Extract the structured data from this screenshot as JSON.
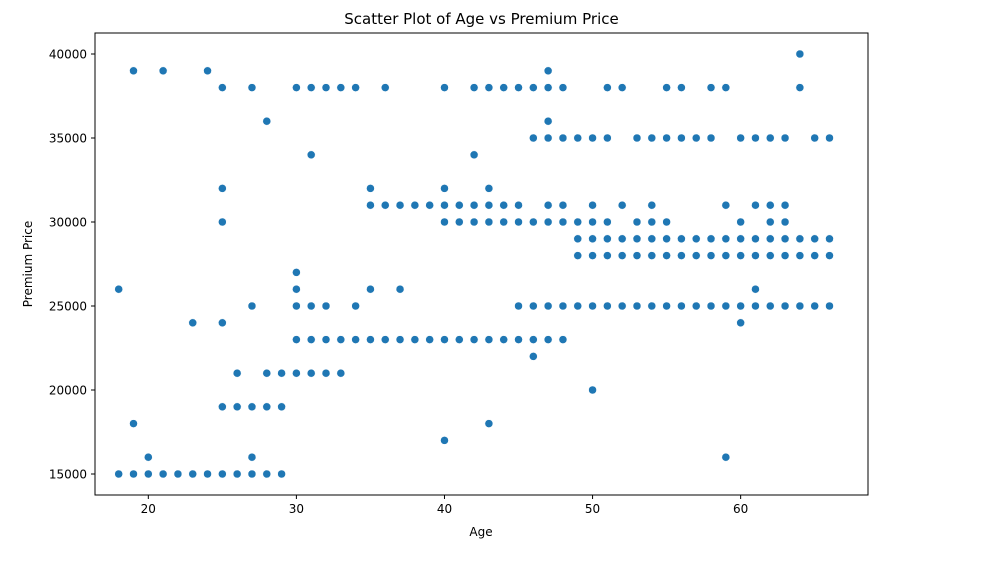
{
  "chart_data": {
    "type": "scatter",
    "title": "Scatter Plot of Age vs Premium Price",
    "xlabel": "Age",
    "ylabel": "Premium Price",
    "xlim": [
      16.4,
      68.6
    ],
    "ylim": [
      13750,
      41250
    ],
    "xticks": [
      20,
      30,
      40,
      50,
      60
    ],
    "yticks": [
      15000,
      20000,
      25000,
      30000,
      35000,
      40000
    ],
    "grid": false,
    "marker_color": "#1f77b4",
    "points": [
      [
        18,
        15000
      ],
      [
        19,
        15000
      ],
      [
        20,
        15000
      ],
      [
        21,
        15000
      ],
      [
        22,
        15000
      ],
      [
        23,
        15000
      ],
      [
        24,
        15000
      ],
      [
        25,
        15000
      ],
      [
        26,
        15000
      ],
      [
        27,
        15000
      ],
      [
        28,
        15000
      ],
      [
        29,
        15000
      ],
      [
        20,
        16000
      ],
      [
        27,
        16000
      ],
      [
        59,
        16000
      ],
      [
        40,
        17000
      ],
      [
        19,
        18000
      ],
      [
        43,
        18000
      ],
      [
        25,
        19000
      ],
      [
        26,
        19000
      ],
      [
        27,
        19000
      ],
      [
        28,
        19000
      ],
      [
        29,
        19000
      ],
      [
        50,
        20000
      ],
      [
        26,
        21000
      ],
      [
        28,
        21000
      ],
      [
        29,
        21000
      ],
      [
        30,
        21000
      ],
      [
        31,
        21000
      ],
      [
        32,
        21000
      ],
      [
        33,
        21000
      ],
      [
        46,
        22000
      ],
      [
        30,
        23000
      ],
      [
        31,
        23000
      ],
      [
        32,
        23000
      ],
      [
        33,
        23000
      ],
      [
        34,
        23000
      ],
      [
        35,
        23000
      ],
      [
        36,
        23000
      ],
      [
        37,
        23000
      ],
      [
        38,
        23000
      ],
      [
        39,
        23000
      ],
      [
        40,
        23000
      ],
      [
        41,
        23000
      ],
      [
        42,
        23000
      ],
      [
        43,
        23000
      ],
      [
        44,
        23000
      ],
      [
        45,
        23000
      ],
      [
        46,
        23000
      ],
      [
        47,
        23000
      ],
      [
        48,
        23000
      ],
      [
        23,
        24000
      ],
      [
        25,
        24000
      ],
      [
        60,
        24000
      ],
      [
        27,
        25000
      ],
      [
        30,
        25000
      ],
      [
        31,
        25000
      ],
      [
        32,
        25000
      ],
      [
        34,
        25000
      ],
      [
        45,
        25000
      ],
      [
        46,
        25000
      ],
      [
        47,
        25000
      ],
      [
        48,
        25000
      ],
      [
        49,
        25000
      ],
      [
        50,
        25000
      ],
      [
        51,
        25000
      ],
      [
        52,
        25000
      ],
      [
        53,
        25000
      ],
      [
        54,
        25000
      ],
      [
        55,
        25000
      ],
      [
        56,
        25000
      ],
      [
        57,
        25000
      ],
      [
        58,
        25000
      ],
      [
        59,
        25000
      ],
      [
        60,
        25000
      ],
      [
        61,
        25000
      ],
      [
        62,
        25000
      ],
      [
        63,
        25000
      ],
      [
        64,
        25000
      ],
      [
        65,
        25000
      ],
      [
        66,
        25000
      ],
      [
        18,
        26000
      ],
      [
        30,
        26000
      ],
      [
        35,
        26000
      ],
      [
        37,
        26000
      ],
      [
        61,
        26000
      ],
      [
        30,
        27000
      ],
      [
        49,
        28000
      ],
      [
        50,
        28000
      ],
      [
        51,
        28000
      ],
      [
        52,
        28000
      ],
      [
        53,
        28000
      ],
      [
        54,
        28000
      ],
      [
        55,
        28000
      ],
      [
        56,
        28000
      ],
      [
        57,
        28000
      ],
      [
        58,
        28000
      ],
      [
        59,
        28000
      ],
      [
        60,
        28000
      ],
      [
        61,
        28000
      ],
      [
        62,
        28000
      ],
      [
        63,
        28000
      ],
      [
        64,
        28000
      ],
      [
        65,
        28000
      ],
      [
        66,
        28000
      ],
      [
        49,
        29000
      ],
      [
        50,
        29000
      ],
      [
        51,
        29000
      ],
      [
        52,
        29000
      ],
      [
        53,
        29000
      ],
      [
        54,
        29000
      ],
      [
        55,
        29000
      ],
      [
        56,
        29000
      ],
      [
        57,
        29000
      ],
      [
        58,
        29000
      ],
      [
        59,
        29000
      ],
      [
        60,
        29000
      ],
      [
        61,
        29000
      ],
      [
        62,
        29000
      ],
      [
        63,
        29000
      ],
      [
        64,
        29000
      ],
      [
        65,
        29000
      ],
      [
        66,
        29000
      ],
      [
        25,
        30000
      ],
      [
        40,
        30000
      ],
      [
        41,
        30000
      ],
      [
        42,
        30000
      ],
      [
        43,
        30000
      ],
      [
        44,
        30000
      ],
      [
        45,
        30000
      ],
      [
        46,
        30000
      ],
      [
        47,
        30000
      ],
      [
        48,
        30000
      ],
      [
        49,
        30000
      ],
      [
        50,
        30000
      ],
      [
        51,
        30000
      ],
      [
        53,
        30000
      ],
      [
        54,
        30000
      ],
      [
        55,
        30000
      ],
      [
        60,
        30000
      ],
      [
        62,
        30000
      ],
      [
        63,
        30000
      ],
      [
        35,
        31000
      ],
      [
        36,
        31000
      ],
      [
        37,
        31000
      ],
      [
        38,
        31000
      ],
      [
        39,
        31000
      ],
      [
        40,
        31000
      ],
      [
        41,
        31000
      ],
      [
        42,
        31000
      ],
      [
        43,
        31000
      ],
      [
        44,
        31000
      ],
      [
        45,
        31000
      ],
      [
        47,
        31000
      ],
      [
        48,
        31000
      ],
      [
        50,
        31000
      ],
      [
        52,
        31000
      ],
      [
        54,
        31000
      ],
      [
        59,
        31000
      ],
      [
        61,
        31000
      ],
      [
        62,
        31000
      ],
      [
        63,
        31000
      ],
      [
        25,
        32000
      ],
      [
        35,
        32000
      ],
      [
        40,
        32000
      ],
      [
        43,
        32000
      ],
      [
        31,
        34000
      ],
      [
        42,
        34000
      ],
      [
        46,
        35000
      ],
      [
        47,
        35000
      ],
      [
        48,
        35000
      ],
      [
        49,
        35000
      ],
      [
        50,
        35000
      ],
      [
        51,
        35000
      ],
      [
        53,
        35000
      ],
      [
        54,
        35000
      ],
      [
        55,
        35000
      ],
      [
        56,
        35000
      ],
      [
        57,
        35000
      ],
      [
        58,
        35000
      ],
      [
        60,
        35000
      ],
      [
        61,
        35000
      ],
      [
        62,
        35000
      ],
      [
        63,
        35000
      ],
      [
        65,
        35000
      ],
      [
        66,
        35000
      ],
      [
        28,
        36000
      ],
      [
        47,
        36000
      ],
      [
        25,
        38000
      ],
      [
        27,
        38000
      ],
      [
        30,
        38000
      ],
      [
        31,
        38000
      ],
      [
        32,
        38000
      ],
      [
        33,
        38000
      ],
      [
        34,
        38000
      ],
      [
        36,
        38000
      ],
      [
        40,
        38000
      ],
      [
        42,
        38000
      ],
      [
        43,
        38000
      ],
      [
        44,
        38000
      ],
      [
        45,
        38000
      ],
      [
        46,
        38000
      ],
      [
        47,
        38000
      ],
      [
        48,
        38000
      ],
      [
        51,
        38000
      ],
      [
        52,
        38000
      ],
      [
        55,
        38000
      ],
      [
        56,
        38000
      ],
      [
        58,
        38000
      ],
      [
        59,
        38000
      ],
      [
        64,
        38000
      ],
      [
        19,
        39000
      ],
      [
        21,
        39000
      ],
      [
        24,
        39000
      ],
      [
        47,
        39000
      ],
      [
        64,
        40000
      ]
    ]
  }
}
